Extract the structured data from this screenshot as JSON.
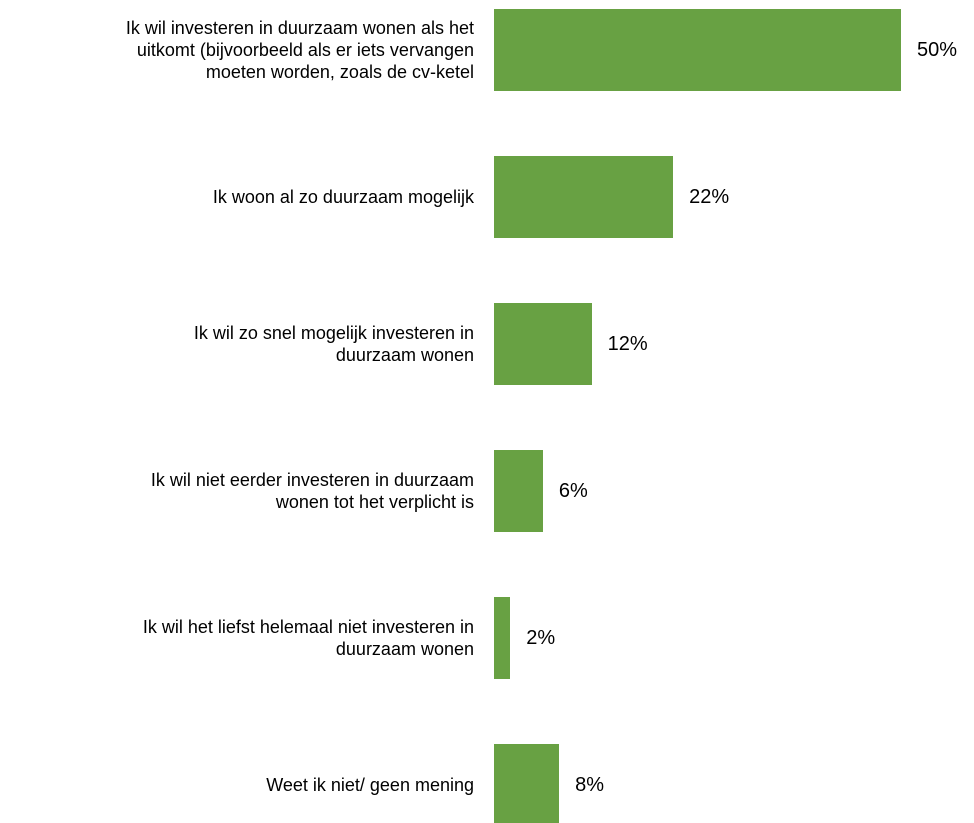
{
  "chart_data": {
    "type": "barh",
    "categories": [
      "Ik wil investeren in duurzaam wonen als het\nuitkomt (bijvoorbeeld als er iets vervangen\nmoeten worden, zoals de cv-ketel",
      "Ik woon al zo duurzaam mogelijk",
      "Ik wil zo snel mogelijk investeren in\nduurzaam wonen",
      "Ik wil niet eerder investeren in duurzaam\nwonen tot het verplicht is",
      "Ik wil het liefst helemaal niet investeren in\nduurzaam wonen",
      "Weet ik niet/ geen mening"
    ],
    "values": [
      50,
      22,
      12,
      6,
      2,
      8
    ],
    "value_labels": [
      "50%",
      "22%",
      "12%",
      "6%",
      "2%",
      "8%"
    ],
    "color": "#68a143"
  }
}
